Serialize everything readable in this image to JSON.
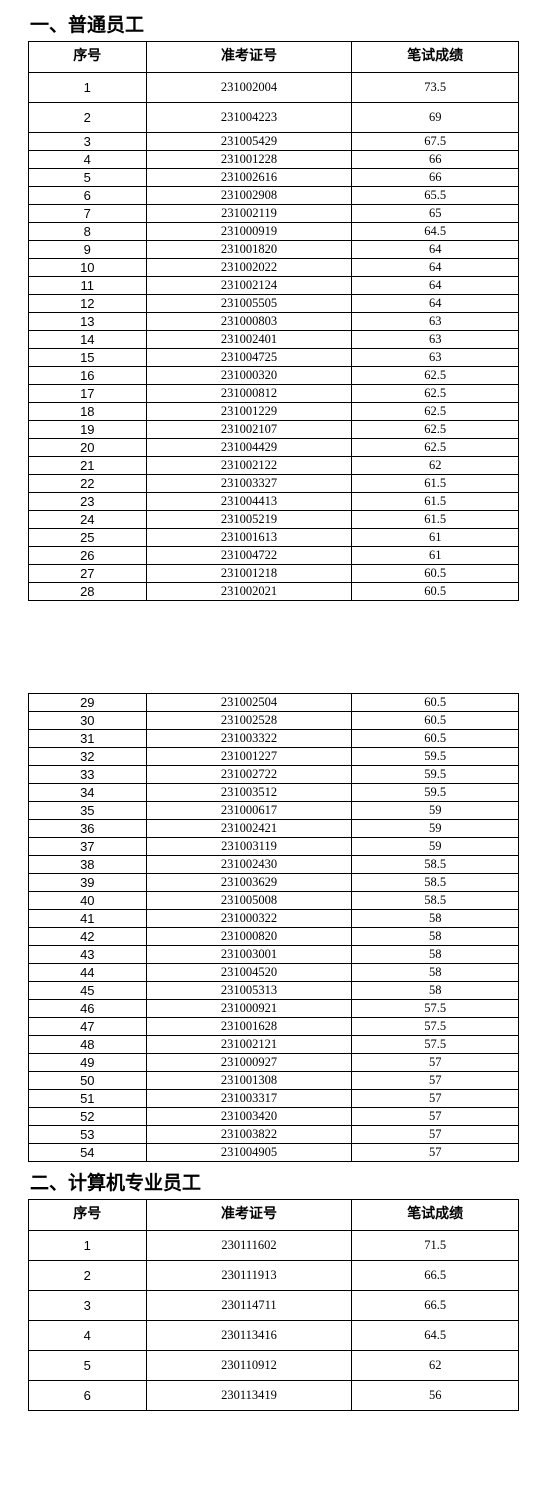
{
  "section1": {
    "heading": "一、普通员工",
    "columns": [
      "序号",
      "准考证号",
      "笔试成绩"
    ],
    "rows_a": [
      {
        "seq": "1",
        "id": "231002004",
        "score": "73.5"
      },
      {
        "seq": "2",
        "id": "231004223",
        "score": "69"
      },
      {
        "seq": "3",
        "id": "231005429",
        "score": "67.5"
      },
      {
        "seq": "4",
        "id": "231001228",
        "score": "66"
      },
      {
        "seq": "5",
        "id": "231002616",
        "score": "66"
      },
      {
        "seq": "6",
        "id": "231002908",
        "score": "65.5"
      },
      {
        "seq": "7",
        "id": "231002119",
        "score": "65"
      },
      {
        "seq": "8",
        "id": "231000919",
        "score": "64.5"
      },
      {
        "seq": "9",
        "id": "231001820",
        "score": "64"
      },
      {
        "seq": "10",
        "id": "231002022",
        "score": "64"
      },
      {
        "seq": "11",
        "id": "231002124",
        "score": "64"
      },
      {
        "seq": "12",
        "id": "231005505",
        "score": "64"
      },
      {
        "seq": "13",
        "id": "231000803",
        "score": "63"
      },
      {
        "seq": "14",
        "id": "231002401",
        "score": "63"
      },
      {
        "seq": "15",
        "id": "231004725",
        "score": "63"
      },
      {
        "seq": "16",
        "id": "231000320",
        "score": "62.5"
      },
      {
        "seq": "17",
        "id": "231000812",
        "score": "62.5"
      },
      {
        "seq": "18",
        "id": "231001229",
        "score": "62.5"
      },
      {
        "seq": "19",
        "id": "231002107",
        "score": "62.5"
      },
      {
        "seq": "20",
        "id": "231004429",
        "score": "62.5"
      },
      {
        "seq": "21",
        "id": "231002122",
        "score": "62"
      },
      {
        "seq": "22",
        "id": "231003327",
        "score": "61.5"
      },
      {
        "seq": "23",
        "id": "231004413",
        "score": "61.5"
      },
      {
        "seq": "24",
        "id": "231005219",
        "score": "61.5"
      },
      {
        "seq": "25",
        "id": "231001613",
        "score": "61"
      },
      {
        "seq": "26",
        "id": "231004722",
        "score": "61"
      },
      {
        "seq": "27",
        "id": "231001218",
        "score": "60.5"
      },
      {
        "seq": "28",
        "id": "231002021",
        "score": "60.5"
      }
    ],
    "rows_b": [
      {
        "seq": "29",
        "id": "231002504",
        "score": "60.5"
      },
      {
        "seq": "30",
        "id": "231002528",
        "score": "60.5"
      },
      {
        "seq": "31",
        "id": "231003322",
        "score": "60.5"
      },
      {
        "seq": "32",
        "id": "231001227",
        "score": "59.5"
      },
      {
        "seq": "33",
        "id": "231002722",
        "score": "59.5"
      },
      {
        "seq": "34",
        "id": "231003512",
        "score": "59.5"
      },
      {
        "seq": "35",
        "id": "231000617",
        "score": "59"
      },
      {
        "seq": "36",
        "id": "231002421",
        "score": "59"
      },
      {
        "seq": "37",
        "id": "231003119",
        "score": "59"
      },
      {
        "seq": "38",
        "id": "231002430",
        "score": "58.5"
      },
      {
        "seq": "39",
        "id": "231003629",
        "score": "58.5"
      },
      {
        "seq": "40",
        "id": "231005008",
        "score": "58.5"
      },
      {
        "seq": "41",
        "id": "231000322",
        "score": "58"
      },
      {
        "seq": "42",
        "id": "231000820",
        "score": "58"
      },
      {
        "seq": "43",
        "id": "231003001",
        "score": "58"
      },
      {
        "seq": "44",
        "id": "231004520",
        "score": "58"
      },
      {
        "seq": "45",
        "id": "231005313",
        "score": "58"
      },
      {
        "seq": "46",
        "id": "231000921",
        "score": "57.5"
      },
      {
        "seq": "47",
        "id": "231001628",
        "score": "57.5"
      },
      {
        "seq": "48",
        "id": "231002121",
        "score": "57.5"
      },
      {
        "seq": "49",
        "id": "231000927",
        "score": "57"
      },
      {
        "seq": "50",
        "id": "231001308",
        "score": "57"
      },
      {
        "seq": "51",
        "id": "231003317",
        "score": "57"
      },
      {
        "seq": "52",
        "id": "231003420",
        "score": "57"
      },
      {
        "seq": "53",
        "id": "231003822",
        "score": "57"
      },
      {
        "seq": "54",
        "id": "231004905",
        "score": "57"
      }
    ]
  },
  "section2": {
    "heading": "二、计算机专业员工",
    "columns": [
      "序号",
      "准考证号",
      "笔试成绩"
    ],
    "rows": [
      {
        "seq": "1",
        "id": "230111602",
        "score": "71.5"
      },
      {
        "seq": "2",
        "id": "230111913",
        "score": "66.5"
      },
      {
        "seq": "3",
        "id": "230114711",
        "score": "66.5"
      },
      {
        "seq": "4",
        "id": "230113416",
        "score": "64.5"
      },
      {
        "seq": "5",
        "id": "230110912",
        "score": "62"
      },
      {
        "seq": "6",
        "id": "230113419",
        "score": "56"
      }
    ]
  }
}
